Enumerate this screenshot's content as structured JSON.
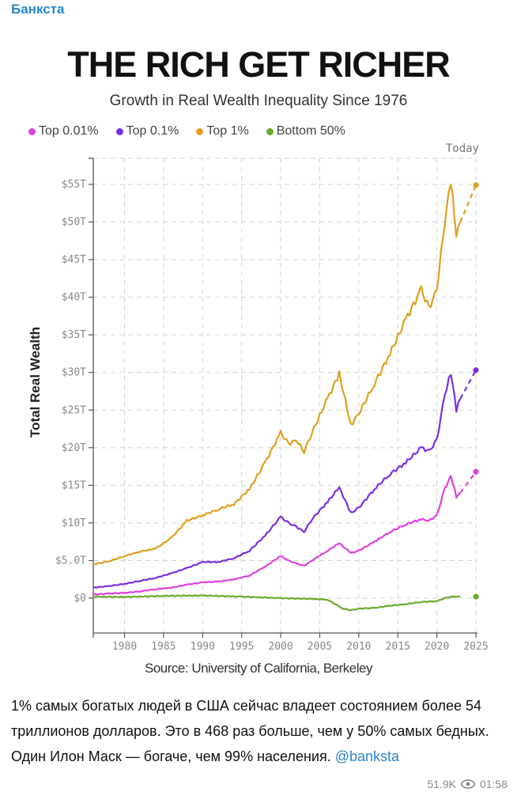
{
  "post": {
    "channel_name": "Банкста",
    "caption": "1% самых богатых людей в США сейчас владеет состоянием более 54 триллионов долларов. Это в 468 раз больше, чем у 50% самых бедных. Один Илон Маск — богаче, чем 99% населения.",
    "mention": "@banksta",
    "views": "51.9K",
    "time": "01:58",
    "link_color": "#2b86c9"
  },
  "chart_data": {
    "type": "line",
    "title": "THE RICH GET RICHER",
    "subtitle": "Growth in Real Wealth Inequality Since 1976",
    "ylabel": "Total Real Wealth",
    "xlabel": "",
    "source": "Source: University of California, Berkeley",
    "annotation": "Today",
    "xlim": [
      1976,
      2025.5
    ],
    "ylim": [
      -5,
      58
    ],
    "grid": true,
    "legend_position": "top-left",
    "x_ticks": [
      1980,
      1985,
      1990,
      1995,
      2000,
      2005,
      2010,
      2015,
      2020,
      2025
    ],
    "x_tick_labels": [
      "1980",
      "1985",
      "1990",
      "1995",
      "2000",
      "2005",
      "2010",
      "2015",
      "2020",
      "2025"
    ],
    "y_ticks": [
      0,
      5,
      10,
      15,
      20,
      25,
      30,
      35,
      40,
      45,
      50,
      55
    ],
    "y_tick_labels": [
      "$0",
      "$5.0T",
      "$10T",
      "$15T",
      "$20T",
      "$25T",
      "$30T",
      "$35T",
      "$40T",
      "$45T",
      "$50T",
      "$55T"
    ],
    "series": [
      {
        "name": "Top 0.01%",
        "color": "#e040e0",
        "x": [
          1976,
          1978,
          1980,
          1982,
          1984,
          1986,
          1988,
          1990,
          1992,
          1994,
          1996,
          1998,
          2000,
          2001,
          2002,
          2003,
          2004,
          2006,
          2007.5,
          2009,
          2010,
          2012,
          2014,
          2016,
          2018,
          2019,
          2020,
          2021,
          2021.8,
          2022.5,
          2023
        ],
        "y": [
          0.5,
          0.6,
          0.7,
          0.9,
          1.2,
          1.4,
          1.8,
          2.1,
          2.2,
          2.5,
          3.0,
          4.2,
          5.6,
          5.0,
          4.6,
          4.3,
          5.0,
          6.3,
          7.3,
          6.0,
          6.3,
          7.5,
          8.8,
          9.8,
          10.5,
          10.3,
          11.0,
          14.5,
          16.3,
          13.5,
          14.0
        ],
        "projection": {
          "x": [
            2023,
            2025
          ],
          "y": [
            14.0,
            16.8
          ]
        }
      },
      {
        "name": "Top 0.1%",
        "color": "#7b2fe0",
        "x": [
          1976,
          1978,
          1980,
          1982,
          1984,
          1986,
          1988,
          1990,
          1992,
          1994,
          1996,
          1998,
          2000,
          2001,
          2002,
          2003,
          2004,
          2006,
          2007.5,
          2009,
          2010,
          2012,
          2014,
          2016,
          2018,
          2019,
          2020,
          2021,
          2021.8,
          2022.5,
          2023
        ],
        "y": [
          1.4,
          1.6,
          1.9,
          2.3,
          2.7,
          3.3,
          4.0,
          4.8,
          4.8,
          5.3,
          6.3,
          8.3,
          10.8,
          10.0,
          9.5,
          8.8,
          10.5,
          12.8,
          14.7,
          11.3,
          12.0,
          14.5,
          16.5,
          18.0,
          20.0,
          19.5,
          21.0,
          27.0,
          30.0,
          25.0,
          26.5
        ],
        "projection": {
          "x": [
            2023,
            2025
          ],
          "y": [
            26.5,
            30.3
          ]
        }
      },
      {
        "name": "Top 1%",
        "color": "#e0a020",
        "x": [
          1976,
          1978,
          1980,
          1982,
          1984,
          1986,
          1988,
          1990,
          1992,
          1994,
          1996,
          1998,
          2000,
          2001,
          2002,
          2003,
          2004,
          2006,
          2007.5,
          2009,
          2010,
          2012,
          2014,
          2016,
          2018,
          2019,
          2020,
          2021,
          2021.8,
          2022.5,
          2023
        ],
        "y": [
          4.5,
          4.9,
          5.6,
          6.2,
          6.6,
          8.0,
          10.3,
          11.0,
          11.8,
          12.5,
          14.5,
          18.0,
          22.0,
          20.5,
          21.0,
          19.5,
          22.0,
          26.5,
          29.8,
          23.0,
          24.5,
          28.5,
          32.5,
          37.0,
          41.0,
          38.5,
          41.0,
          50.0,
          55.5,
          48.0,
          50.0
        ],
        "projection": {
          "x": [
            2023,
            2025
          ],
          "y": [
            50.0,
            54.9
          ]
        }
      },
      {
        "name": "Bottom 50%",
        "color": "#6aaa2a",
        "x": [
          1976,
          1980,
          1985,
          1990,
          1995,
          2000,
          2004,
          2006,
          2008,
          2009,
          2010,
          2012,
          2014,
          2016,
          2018,
          2020,
          2021,
          2022,
          2023
        ],
        "y": [
          0.2,
          0.15,
          0.3,
          0.35,
          0.2,
          0.0,
          -0.1,
          -0.2,
          -1.4,
          -1.6,
          -1.4,
          -1.3,
          -1.0,
          -0.8,
          -0.5,
          -0.4,
          0.0,
          0.2,
          0.2
        ],
        "projection": {
          "x": [
            2025
          ],
          "y": [
            0.2
          ]
        }
      }
    ]
  }
}
